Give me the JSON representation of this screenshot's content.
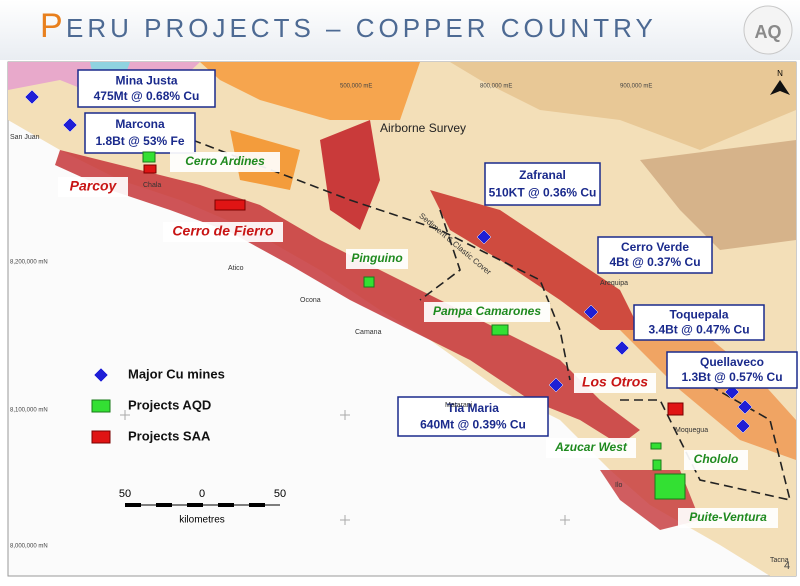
{
  "header": {
    "title_initial": "P",
    "title_rest": "ERU PROJECTS – COPPER COUNTRY",
    "logo": "AQ",
    "page_number": "4"
  },
  "mines": [
    {
      "name": "Mina Justa",
      "detail": "475Mt @ 0.68% Cu"
    },
    {
      "name": "Marcona",
      "detail": "1.8Bt @ 53% Fe"
    },
    {
      "name": "Zafranal",
      "detail": "510KT @ 0.36% Cu"
    },
    {
      "name": "Cerro Verde",
      "detail": "4Bt @ 0.37% Cu"
    },
    {
      "name": "Toquepala",
      "detail": "3.4Bt @ 0.47% Cu"
    },
    {
      "name": "Quellaveco",
      "detail": "1.3Bt @ 0.57% Cu"
    },
    {
      "name": "Tia Maria",
      "detail": "640Mt @ 0.39% Cu"
    }
  ],
  "projects_aqd": [
    "Cerro Ardines",
    "Pinguino",
    "Pampa Camarones",
    "Azucar West",
    "Chololo",
    "Puite-Ventura"
  ],
  "projects_saa": [
    "Parcoy",
    "Cerro de Fierro",
    "Los Otros"
  ],
  "legend": [
    "Major Cu mines",
    "Projects AQD",
    "Projects SAA"
  ],
  "scale": {
    "left": "50",
    "middle": "0",
    "right": "50",
    "unit": "kilometres"
  },
  "survey_label": "Airborne Survey",
  "cover_label": "Sediment & Clastic Cover",
  "places": [
    "San Juan",
    "Chala",
    "Atico",
    "Ocona",
    "Camana",
    "Arequipa",
    "Matarani",
    "Moquegua",
    "Ilo",
    "Tacna"
  ],
  "grid_labels": [
    "8,200,000 mN",
    "8,100,000 mN",
    "8,000,000 mN",
    "500,000 mE",
    "800,000 mE",
    "900,000 mE"
  ],
  "north": "N"
}
